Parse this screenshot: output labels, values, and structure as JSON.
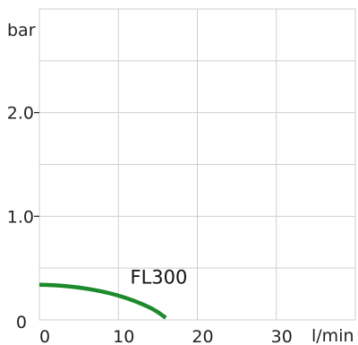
{
  "chart_data": {
    "type": "line",
    "title": "",
    "xlabel": "l/min",
    "ylabel": "bar",
    "xlim": [
      0,
      40
    ],
    "ylim": [
      0,
      3
    ],
    "x_ticks": [
      0,
      10,
      20,
      30
    ],
    "x_tick_labels": [
      "0",
      "10",
      "20",
      "30"
    ],
    "y_ticks": [
      1,
      2
    ],
    "y_tick_labels": [
      "1.0",
      "2.0"
    ],
    "origin_label": "0",
    "grid": true,
    "series": [
      {
        "name": "FL300",
        "color": "#1e8a2e",
        "x": [
          0,
          2,
          4,
          6,
          8,
          10,
          12,
          14,
          15,
          16
        ],
        "y": [
          0.34,
          0.335,
          0.322,
          0.302,
          0.274,
          0.236,
          0.186,
          0.12,
          0.076,
          0.02
        ]
      }
    ],
    "annotations": [
      {
        "text": "FL300",
        "x": 11.5,
        "y": 0.35
      }
    ]
  }
}
